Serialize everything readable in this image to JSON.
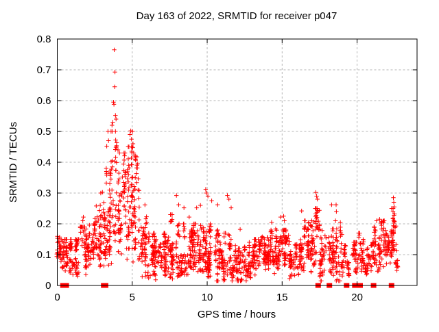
{
  "chart_data": {
    "type": "scatter",
    "title": "Day 163 of 2022, SRMTID for receiver p047",
    "xlabel": "GPS time / hours",
    "ylabel": "SRMTID / TECUs",
    "xlim": [
      0,
      24
    ],
    "ylim": [
      0,
      0.8
    ],
    "xticks": [
      0,
      5,
      10,
      15,
      20
    ],
    "yticks": [
      0,
      0.1,
      0.2,
      0.3,
      0.4,
      0.5,
      0.6,
      0.7,
      0.8
    ],
    "grid": true,
    "legend": "none",
    "marker": "plus",
    "marker_color": "#ff0000",
    "grid_color": "#b4b4b4",
    "axis_color": "#000000",
    "series_name": "SRMTID",
    "render_seed": 20221631,
    "density_segments": [
      [
        0.0,
        0.5,
        50,
        0.07,
        0.16
      ],
      [
        0.5,
        1.0,
        50,
        0.06,
        0.15
      ],
      [
        1.0,
        1.5,
        45,
        0.05,
        0.15
      ],
      [
        1.5,
        2.0,
        45,
        0.06,
        0.19
      ],
      [
        2.0,
        2.5,
        45,
        0.08,
        0.2
      ],
      [
        2.5,
        3.0,
        50,
        0.1,
        0.26
      ],
      [
        3.0,
        3.5,
        55,
        0.12,
        0.38
      ],
      [
        3.5,
        4.0,
        60,
        0.15,
        0.5
      ],
      [
        4.0,
        4.5,
        60,
        0.15,
        0.43
      ],
      [
        4.5,
        5.0,
        60,
        0.15,
        0.45
      ],
      [
        5.0,
        5.5,
        55,
        0.12,
        0.42
      ],
      [
        5.5,
        6.0,
        50,
        0.08,
        0.3
      ],
      [
        6.0,
        6.5,
        40,
        0.04,
        0.17
      ],
      [
        6.5,
        7.0,
        45,
        0.04,
        0.15
      ],
      [
        7.0,
        7.5,
        50,
        0.05,
        0.17
      ],
      [
        7.5,
        8.0,
        50,
        0.05,
        0.23
      ],
      [
        8.0,
        8.5,
        50,
        0.05,
        0.2
      ],
      [
        8.5,
        9.0,
        50,
        0.05,
        0.18
      ],
      [
        9.0,
        9.5,
        50,
        0.06,
        0.2
      ],
      [
        9.5,
        10.0,
        50,
        0.06,
        0.23
      ],
      [
        10.0,
        10.5,
        50,
        0.05,
        0.2
      ],
      [
        10.5,
        11.0,
        50,
        0.04,
        0.18
      ],
      [
        11.0,
        11.5,
        50,
        0.04,
        0.17
      ],
      [
        11.5,
        12.0,
        45,
        0.03,
        0.15
      ],
      [
        12.0,
        12.5,
        40,
        0.02,
        0.12
      ],
      [
        12.5,
        13.0,
        45,
        0.04,
        0.14
      ],
      [
        13.0,
        13.5,
        50,
        0.05,
        0.15
      ],
      [
        13.5,
        14.0,
        50,
        0.06,
        0.16
      ],
      [
        14.0,
        14.5,
        50,
        0.06,
        0.18
      ],
      [
        14.5,
        15.0,
        50,
        0.07,
        0.19
      ],
      [
        15.0,
        15.5,
        50,
        0.06,
        0.18
      ],
      [
        15.5,
        16.0,
        40,
        0.04,
        0.15
      ],
      [
        16.0,
        16.5,
        45,
        0.06,
        0.19
      ],
      [
        16.5,
        17.0,
        50,
        0.07,
        0.21
      ],
      [
        17.0,
        17.5,
        50,
        0.08,
        0.25
      ],
      [
        17.5,
        18.0,
        40,
        0.03,
        0.19
      ],
      [
        18.0,
        18.5,
        45,
        0.07,
        0.24
      ],
      [
        18.5,
        19.0,
        40,
        0.04,
        0.21
      ],
      [
        19.0,
        19.5,
        35,
        0.05,
        0.13
      ],
      [
        19.5,
        20.0,
        35,
        0.04,
        0.14
      ],
      [
        20.0,
        20.5,
        40,
        0.05,
        0.17
      ],
      [
        20.5,
        21.0,
        35,
        0.05,
        0.13
      ],
      [
        21.0,
        21.5,
        45,
        0.06,
        0.19
      ],
      [
        21.5,
        22.0,
        45,
        0.08,
        0.21
      ],
      [
        22.0,
        22.3,
        28,
        0.08,
        0.18
      ],
      [
        22.3,
        22.6,
        32,
        0.09,
        0.25
      ],
      [
        22.6,
        22.75,
        12,
        0.05,
        0.14
      ]
    ],
    "outliers": [
      [
        1.7,
        0.21
      ],
      [
        1.74,
        0.222
      ],
      [
        2.6,
        0.258
      ],
      [
        2.9,
        0.3
      ],
      [
        3.3,
        0.452
      ],
      [
        3.38,
        0.5
      ],
      [
        3.42,
        0.47
      ],
      [
        3.65,
        0.52
      ],
      [
        3.7,
        0.53
      ],
      [
        3.75,
        0.595
      ],
      [
        3.78,
        0.588
      ],
      [
        3.8,
        0.765
      ],
      [
        3.83,
        0.645
      ],
      [
        3.85,
        0.693
      ],
      [
        3.88,
        0.552
      ],
      [
        3.92,
        0.54
      ],
      [
        4.05,
        0.44
      ],
      [
        4.15,
        0.43
      ],
      [
        4.85,
        0.49
      ],
      [
        4.9,
        0.502
      ],
      [
        4.95,
        0.475
      ],
      [
        5.02,
        0.5
      ],
      [
        5.05,
        0.46
      ],
      [
        5.1,
        0.43
      ],
      [
        6.2,
        0.032
      ],
      [
        6.5,
        0.035
      ],
      [
        7.95,
        0.292
      ],
      [
        8.1,
        0.262
      ],
      [
        8.45,
        0.252
      ],
      [
        8.8,
        0.222
      ],
      [
        9.3,
        0.252
      ],
      [
        9.55,
        0.26
      ],
      [
        9.9,
        0.312
      ],
      [
        9.95,
        0.3
      ],
      [
        10.05,
        0.29
      ],
      [
        10.3,
        0.275
      ],
      [
        10.7,
        0.262
      ],
      [
        11.35,
        0.292
      ],
      [
        11.45,
        0.28
      ],
      [
        11.6,
        0.252
      ],
      [
        12.05,
        0.02
      ],
      [
        12.2,
        0.182
      ],
      [
        14.3,
        0.205
      ],
      [
        14.9,
        0.222
      ],
      [
        15.1,
        0.225
      ],
      [
        15.15,
        0.21
      ],
      [
        16.3,
        0.242
      ],
      [
        17.25,
        0.302
      ],
      [
        17.3,
        0.29
      ],
      [
        17.35,
        0.28
      ],
      [
        18.3,
        0.262
      ],
      [
        18.6,
        0.262
      ],
      [
        18.62,
        0.24
      ],
      [
        21.3,
        0.21
      ],
      [
        21.5,
        0.215
      ],
      [
        22.4,
        0.24
      ],
      [
        22.42,
        0.285
      ],
      [
        22.45,
        0.27
      ],
      [
        22.48,
        0.255
      ],
      [
        22.5,
        0.232
      ]
    ],
    "zero_markers": [
      0.38,
      0.6,
      3.1,
      3.22,
      17.4,
      18.15,
      19.3,
      19.85,
      20.2,
      21.1,
      22.3
    ]
  }
}
